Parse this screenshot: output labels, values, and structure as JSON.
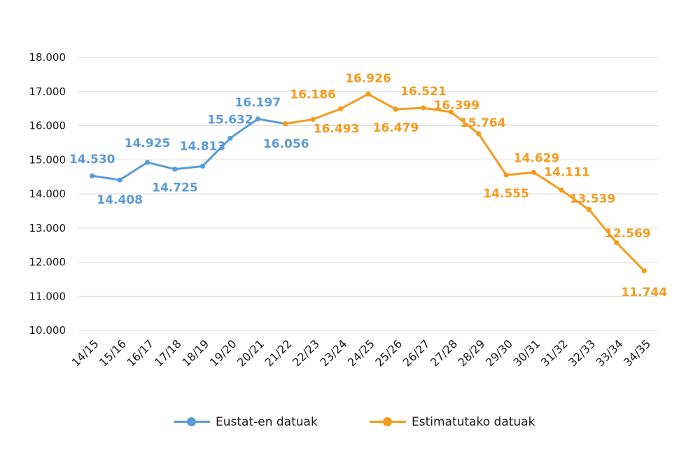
{
  "chart_data": {
    "type": "line",
    "title": "",
    "xlabel": "",
    "ylabel": "",
    "ylim": [
      10000,
      18000
    ],
    "yticks": [
      10000,
      11000,
      12000,
      13000,
      14000,
      15000,
      16000,
      17000,
      18000
    ],
    "ytick_labels": [
      "10.000",
      "11.000",
      "12.000",
      "13.000",
      "14.000",
      "15.000",
      "16.000",
      "17.000",
      "18.000"
    ],
    "grid": true,
    "legend_position": "bottom",
    "categories": [
      "14/15",
      "15/16",
      "16/17",
      "17/18",
      "18/19",
      "19/20",
      "20/21",
      "21/22",
      "22/23",
      "23/24",
      "24/25",
      "25/26",
      "26/27",
      "27/28",
      "28/29",
      "29/30",
      "30/31",
      "31/32",
      "32/33",
      "33/34",
      "34/35"
    ],
    "series": [
      {
        "name": "Eustat-en datuak",
        "color": "#5b9bd5",
        "values": [
          14530,
          14408,
          14925,
          14725,
          14813,
          15632,
          16197,
          16056,
          null,
          null,
          null,
          null,
          null,
          null,
          null,
          null,
          null,
          null,
          null,
          null,
          null
        ],
        "labels": [
          "14.530",
          "14.408",
          "14.925",
          "14.725",
          "14.813",
          "15.632",
          "16.197",
          "16.056",
          null,
          null,
          null,
          null,
          null,
          null,
          null,
          null,
          null,
          null,
          null,
          null,
          null
        ]
      },
      {
        "name": "Estimatutako datuak",
        "color": "#f59b1c",
        "values": [
          null,
          null,
          null,
          null,
          null,
          null,
          null,
          16056,
          16186,
          16493,
          16926,
          16479,
          16521,
          16399,
          15764,
          14555,
          14629,
          14111,
          13539,
          12569,
          11744
        ],
        "labels": [
          null,
          null,
          null,
          null,
          null,
          null,
          null,
          null,
          "16.186",
          "16.493",
          "16.926",
          "16.479",
          "16.521",
          "16.399",
          "15.764",
          "14.555",
          "14.629",
          "14.111",
          "13.539",
          "12.569",
          "11.744"
        ]
      }
    ]
  }
}
